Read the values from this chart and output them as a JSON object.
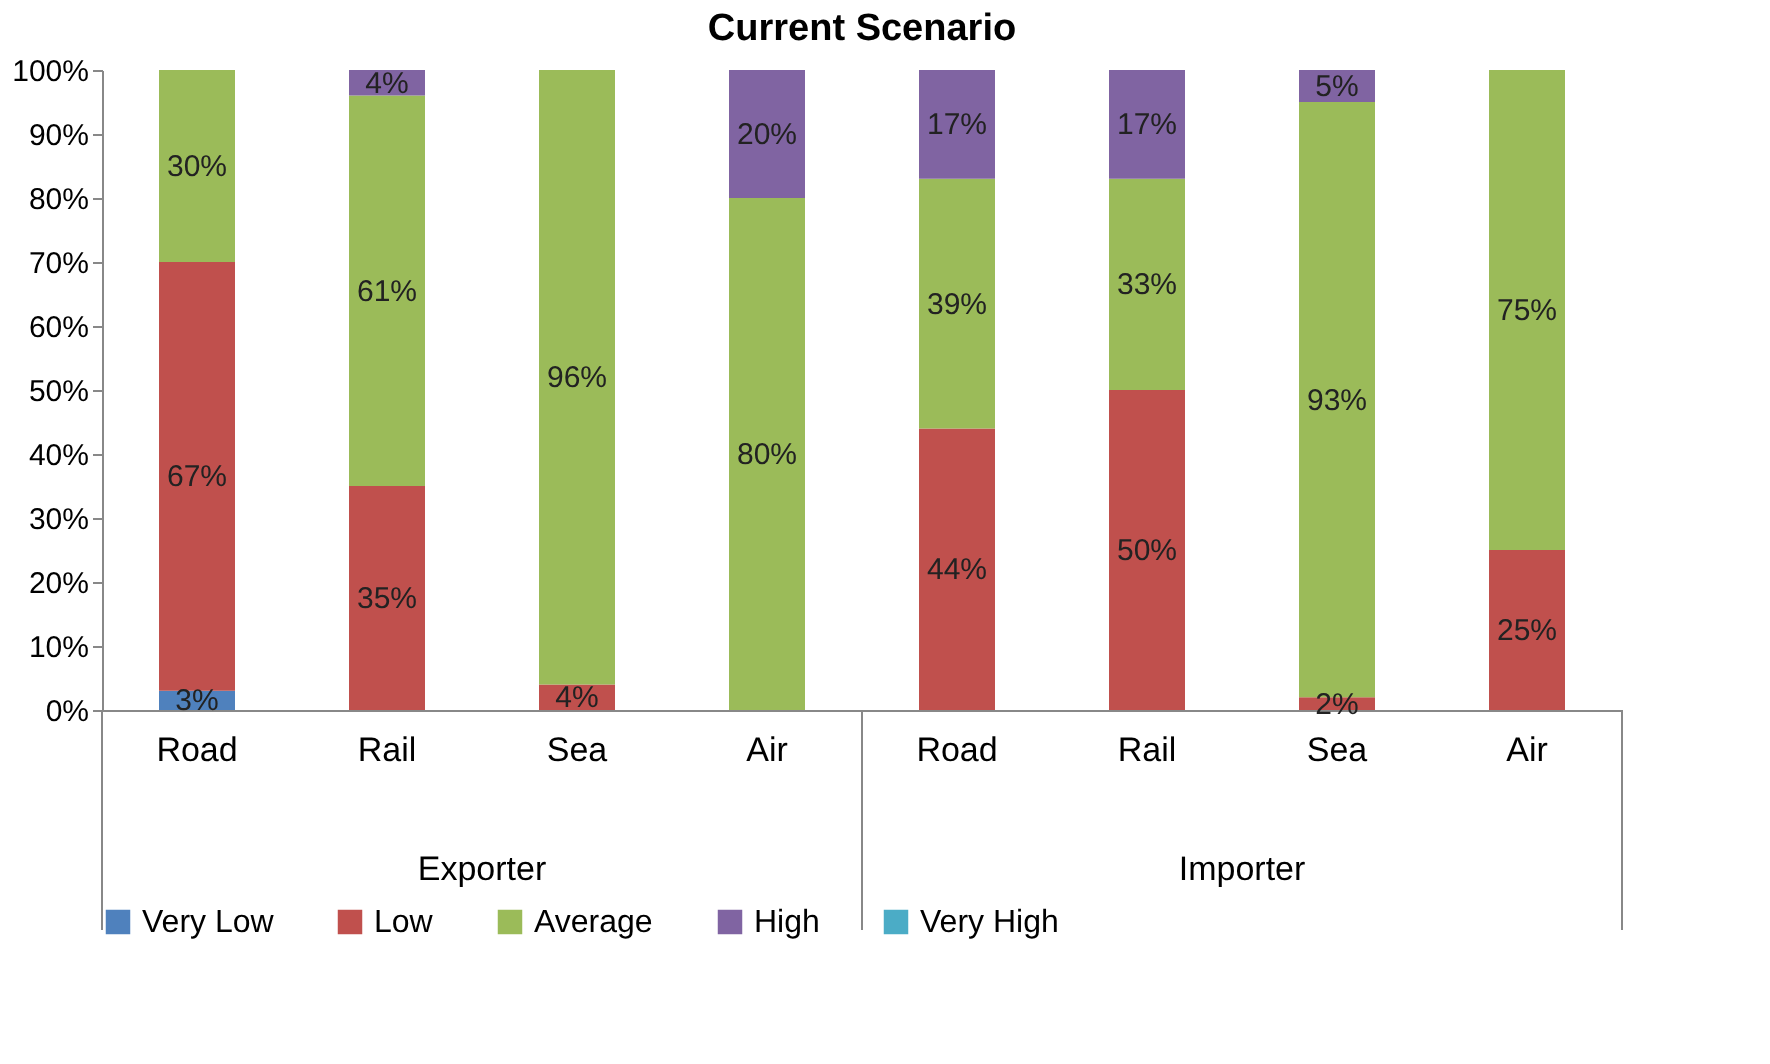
{
  "chart_data": {
    "type": "bar",
    "title": "Current Scenario",
    "stacked": true,
    "categories": [
      "Road",
      "Rail",
      "Sea",
      "Air",
      "Road",
      "Rail",
      "Sea",
      "Air"
    ],
    "annotations": [
      "Exporter",
      "Importer"
    ],
    "series": [
      {
        "name": "Very Low",
        "color": "#4f81bd",
        "values": [
          3,
          0,
          0,
          0,
          0,
          0,
          0,
          0
        ],
        "value_labels": [
          "3%",
          null,
          null,
          null,
          null,
          null,
          null,
          null
        ]
      },
      {
        "name": "Low",
        "color": "#c0504d",
        "values": [
          67,
          35,
          4,
          0,
          44,
          50,
          2,
          25
        ],
        "value_labels": [
          "67%",
          "35%",
          "4%",
          null,
          "44%",
          "50%",
          "2%",
          "25%"
        ]
      },
      {
        "name": "Average",
        "color": "#9bbb59",
        "values": [
          30,
          61,
          96,
          80,
          39,
          33,
          93,
          75
        ],
        "value_labels": [
          "30%",
          "61%",
          "96%",
          "80%",
          "39%",
          "33%",
          "93%",
          "75%"
        ]
      },
      {
        "name": "High",
        "color": "#8064a2",
        "values": [
          0,
          4,
          0,
          20,
          17,
          17,
          5,
          0
        ],
        "value_labels": [
          null,
          "4%",
          null,
          "20%",
          "17%",
          "17%",
          "5%",
          null
        ]
      },
      {
        "name": "Very High",
        "color": "#4bacc6",
        "values": [
          0,
          0,
          0,
          0,
          0,
          0,
          0,
          0
        ],
        "value_labels": [
          null,
          null,
          null,
          null,
          null,
          null,
          null,
          null
        ]
      }
    ],
    "ylim": [
      0,
      100
    ],
    "yticks": [
      {
        "value": 0,
        "label": "0%"
      },
      {
        "value": 10,
        "label": "10%"
      },
      {
        "value": 20,
        "label": "20%"
      },
      {
        "value": 30,
        "label": "30%"
      },
      {
        "value": 40,
        "label": "40%"
      },
      {
        "value": 50,
        "label": "50%"
      },
      {
        "value": 60,
        "label": "60%"
      },
      {
        "value": 70,
        "label": "70%"
      },
      {
        "value": 80,
        "label": "80%"
      },
      {
        "value": 90,
        "label": "90%"
      },
      {
        "value": 100,
        "label": "100%"
      }
    ],
    "grid": false,
    "legend": "bottom"
  }
}
